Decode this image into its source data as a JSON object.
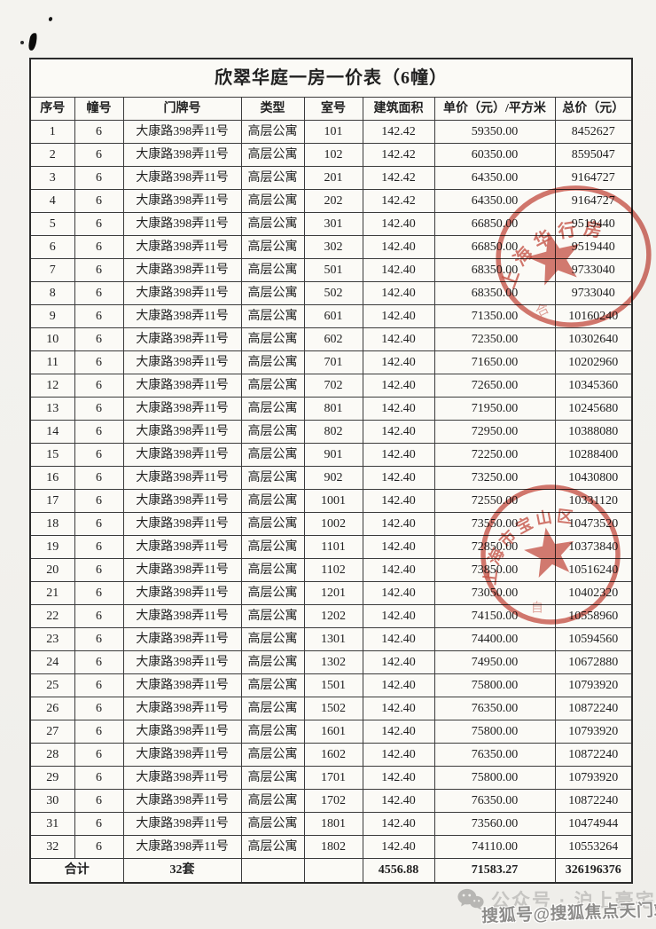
{
  "table": {
    "title": "欣翠华庭一房一价表（6幢）",
    "columns": [
      "序号",
      "幢号",
      "门牌号",
      "类型",
      "室号",
      "建筑面积",
      "单价（元）/平方米",
      "总价（元）"
    ],
    "rows": [
      [
        "1",
        "6",
        "大康路398弄11号",
        "高层公寓",
        "101",
        "142.42",
        "59350.00",
        "8452627"
      ],
      [
        "2",
        "6",
        "大康路398弄11号",
        "高层公寓",
        "102",
        "142.42",
        "60350.00",
        "8595047"
      ],
      [
        "3",
        "6",
        "大康路398弄11号",
        "高层公寓",
        "201",
        "142.42",
        "64350.00",
        "9164727"
      ],
      [
        "4",
        "6",
        "大康路398弄11号",
        "高层公寓",
        "202",
        "142.42",
        "64350.00",
        "9164727"
      ],
      [
        "5",
        "6",
        "大康路398弄11号",
        "高层公寓",
        "301",
        "142.40",
        "66850.00",
        "9519440"
      ],
      [
        "6",
        "6",
        "大康路398弄11号",
        "高层公寓",
        "302",
        "142.40",
        "66850.00",
        "9519440"
      ],
      [
        "7",
        "6",
        "大康路398弄11号",
        "高层公寓",
        "501",
        "142.40",
        "68350.00",
        "9733040"
      ],
      [
        "8",
        "6",
        "大康路398弄11号",
        "高层公寓",
        "502",
        "142.40",
        "68350.00",
        "9733040"
      ],
      [
        "9",
        "6",
        "大康路398弄11号",
        "高层公寓",
        "601",
        "142.40",
        "71350.00",
        "10160240"
      ],
      [
        "10",
        "6",
        "大康路398弄11号",
        "高层公寓",
        "602",
        "142.40",
        "72350.00",
        "10302640"
      ],
      [
        "11",
        "6",
        "大康路398弄11号",
        "高层公寓",
        "701",
        "142.40",
        "71650.00",
        "10202960"
      ],
      [
        "12",
        "6",
        "大康路398弄11号",
        "高层公寓",
        "702",
        "142.40",
        "72650.00",
        "10345360"
      ],
      [
        "13",
        "6",
        "大康路398弄11号",
        "高层公寓",
        "801",
        "142.40",
        "71950.00",
        "10245680"
      ],
      [
        "14",
        "6",
        "大康路398弄11号",
        "高层公寓",
        "802",
        "142.40",
        "72950.00",
        "10388080"
      ],
      [
        "15",
        "6",
        "大康路398弄11号",
        "高层公寓",
        "901",
        "142.40",
        "72250.00",
        "10288400"
      ],
      [
        "16",
        "6",
        "大康路398弄11号",
        "高层公寓",
        "902",
        "142.40",
        "73250.00",
        "10430800"
      ],
      [
        "17",
        "6",
        "大康路398弄11号",
        "高层公寓",
        "1001",
        "142.40",
        "72550.00",
        "10331120"
      ],
      [
        "18",
        "6",
        "大康路398弄11号",
        "高层公寓",
        "1002",
        "142.40",
        "73550.00",
        "10473520"
      ],
      [
        "19",
        "6",
        "大康路398弄11号",
        "高层公寓",
        "1101",
        "142.40",
        "72850.00",
        "10373840"
      ],
      [
        "20",
        "6",
        "大康路398弄11号",
        "高层公寓",
        "1102",
        "142.40",
        "73850.00",
        "10516240"
      ],
      [
        "21",
        "6",
        "大康路398弄11号",
        "高层公寓",
        "1201",
        "142.40",
        "73050.00",
        "10402320"
      ],
      [
        "22",
        "6",
        "大康路398弄11号",
        "高层公寓",
        "1202",
        "142.40",
        "74150.00",
        "10558960"
      ],
      [
        "23",
        "6",
        "大康路398弄11号",
        "高层公寓",
        "1301",
        "142.40",
        "74400.00",
        "10594560"
      ],
      [
        "24",
        "6",
        "大康路398弄11号",
        "高层公寓",
        "1302",
        "142.40",
        "74950.00",
        "10672880"
      ],
      [
        "25",
        "6",
        "大康路398弄11号",
        "高层公寓",
        "1501",
        "142.40",
        "75800.00",
        "10793920"
      ],
      [
        "26",
        "6",
        "大康路398弄11号",
        "高层公寓",
        "1502",
        "142.40",
        "76350.00",
        "10872240"
      ],
      [
        "27",
        "6",
        "大康路398弄11号",
        "高层公寓",
        "1601",
        "142.40",
        "75800.00",
        "10793920"
      ],
      [
        "28",
        "6",
        "大康路398弄11号",
        "高层公寓",
        "1602",
        "142.40",
        "76350.00",
        "10872240"
      ],
      [
        "29",
        "6",
        "大康路398弄11号",
        "高层公寓",
        "1701",
        "142.40",
        "75800.00",
        "10793920"
      ],
      [
        "30",
        "6",
        "大康路398弄11号",
        "高层公寓",
        "1702",
        "142.40",
        "76350.00",
        "10872240"
      ],
      [
        "31",
        "6",
        "大康路398弄11号",
        "高层公寓",
        "1801",
        "142.40",
        "73560.00",
        "10474944"
      ],
      [
        "32",
        "6",
        "大康路398弄11号",
        "高层公寓",
        "1802",
        "142.40",
        "74110.00",
        "10553264"
      ]
    ],
    "total_row": {
      "label": "合计",
      "units": "32套",
      "type_blank": "",
      "room_blank": "",
      "area": "4556.88",
      "unit_price": "71583.27",
      "total_price": "326196376"
    }
  },
  "stamps": [
    {
      "name": "round-seal-upper",
      "arc_text": "上海华行房",
      "color": "#c23f33"
    },
    {
      "name": "round-seal-lower",
      "arc_text": "上海市宝山区",
      "color": "#c23f33"
    }
  ],
  "watermark": {
    "wechat_line": "公众号 · 沪上豪宅",
    "sohu_line": "搜狐号@搜狐焦点天门站",
    "wechat_icon": "wechat-icon"
  }
}
